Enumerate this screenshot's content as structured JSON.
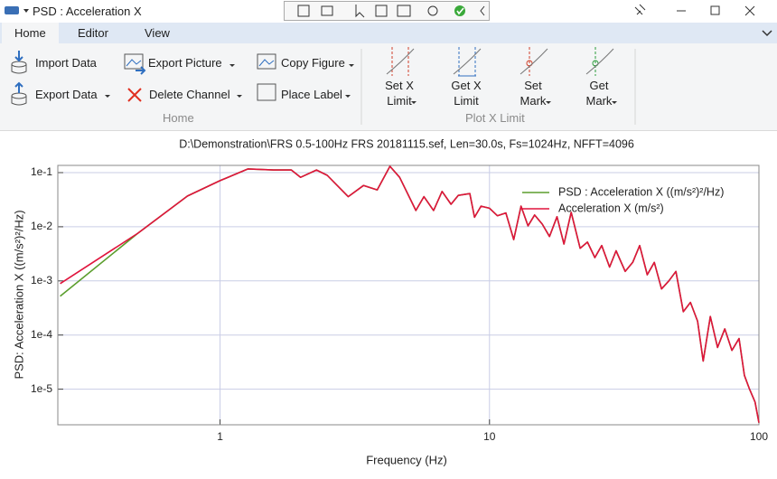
{
  "window": {
    "title": "PSD : Acceleration X"
  },
  "tabs": [
    "Home",
    "Editor",
    "View"
  ],
  "ribbon": {
    "home_group": {
      "label": "Home",
      "buttons": [
        "Import Data",
        "Export Data",
        "Export Picture",
        "Delete Channel",
        "Copy Figure",
        "Place Label"
      ]
    },
    "plot_group": {
      "label": "Plot X Limit",
      "buttons": [
        {
          "lines": [
            "Set X",
            "Limit"
          ]
        },
        {
          "lines": [
            "Get X",
            "Limit"
          ]
        },
        {
          "lines": [
            "Set",
            "Mark"
          ]
        },
        {
          "lines": [
            "Get",
            "Mark"
          ]
        }
      ]
    }
  },
  "chart_data": {
    "type": "line",
    "title": "D:\\Demonstration\\FRS 0.5-100Hz FRS 20181115.sef, Len=30.0s, Fs=1024Hz, NFFT=4096",
    "x_label": "Frequency (Hz)",
    "y_label": "PSD: Acceleration X ((m/s²)²/Hz)",
    "xscale": "log",
    "yscale": "log",
    "grid": true,
    "legend": "upper right",
    "xlim": [
      0.25,
      100
    ],
    "ylim": [
      2.2e-06,
      0.136
    ],
    "xticks": [
      1,
      10,
      100
    ],
    "yticks": [
      {
        "value": 0.1,
        "label": "1e-1"
      },
      {
        "value": 0.01,
        "label": "1e-2"
      },
      {
        "value": 0.001,
        "label": "1e-3"
      },
      {
        "value": 0.0001,
        "label": "1e-4"
      },
      {
        "value": 1e-05,
        "label": "1e-5"
      }
    ],
    "x": [
      0.255,
      0.496,
      0.757,
      1.0,
      1.27,
      1.58,
      1.84,
      1.99,
      2.28,
      2.5,
      2.99,
      3.41,
      3.83,
      4.27,
      4.64,
      5.33,
      5.71,
      6.2,
      6.67,
      7.2,
      7.66,
      8.45,
      8.8,
      9.3,
      10.0,
      10.7,
      11.5,
      12.3,
      13.1,
      13.9,
      14.7,
      15.7,
      16.7,
      17.8,
      18.9,
      20.1,
      21.7,
      23.1,
      24.6,
      26.1,
      27.9,
      29.5,
      31.9,
      34.0,
      36.1,
      38.5,
      40.9,
      43.5,
      46.3,
      49.2,
      52.4,
      55.7,
      59.2,
      62.1,
      66.0,
      70.2,
      74.7,
      79.4,
      84.4,
      88.3,
      92.3,
      96.7,
      100
    ],
    "series": [
      {
        "name": "PSD : Acceleration X ((m/s²)²/Hz)",
        "color": "#5b9e2d",
        "values": [
          0.00052,
          0.0076,
          0.037,
          0.071,
          0.117,
          0.112,
          0.112,
          0.082,
          0.112,
          0.089,
          0.036,
          0.058,
          0.048,
          0.131,
          0.082,
          0.02,
          0.036,
          0.02,
          0.045,
          0.026,
          0.038,
          0.041,
          0.015,
          0.024,
          0.022,
          0.016,
          0.018,
          0.0058,
          0.024,
          0.0104,
          0.0165,
          0.0112,
          0.0066,
          0.0153,
          0.0048,
          0.0185,
          0.004,
          0.0052,
          0.0027,
          0.0045,
          0.0018,
          0.0036,
          0.0015,
          0.0022,
          0.0045,
          0.0013,
          0.0022,
          0.00071,
          0.001,
          0.0015,
          0.00027,
          0.0004,
          0.00018,
          3.3e-05,
          0.00022,
          5.9e-05,
          0.00013,
          5.2e-05,
          8.6e-05,
          1.8e-05,
          1e-05,
          5.8e-06,
          2.4e-06
        ]
      },
      {
        "name": "Acceleration X (m/s²)",
        "color": "#e0143c",
        "values": [
          0.00089,
          0.0076,
          0.037,
          0.071,
          0.117,
          0.112,
          0.112,
          0.082,
          0.112,
          0.089,
          0.036,
          0.058,
          0.048,
          0.131,
          0.082,
          0.02,
          0.036,
          0.02,
          0.045,
          0.026,
          0.038,
          0.041,
          0.015,
          0.024,
          0.022,
          0.016,
          0.018,
          0.0058,
          0.024,
          0.0104,
          0.0165,
          0.0112,
          0.0066,
          0.0153,
          0.0048,
          0.0185,
          0.004,
          0.0052,
          0.0027,
          0.0045,
          0.0018,
          0.0036,
          0.0015,
          0.0022,
          0.0045,
          0.0013,
          0.0022,
          0.00071,
          0.001,
          0.0015,
          0.00027,
          0.0004,
          0.00018,
          3.3e-05,
          0.00022,
          5.9e-05,
          0.00013,
          5.2e-05,
          8.6e-05,
          1.8e-05,
          1e-05,
          5.8e-06,
          2.4e-06
        ]
      }
    ]
  }
}
